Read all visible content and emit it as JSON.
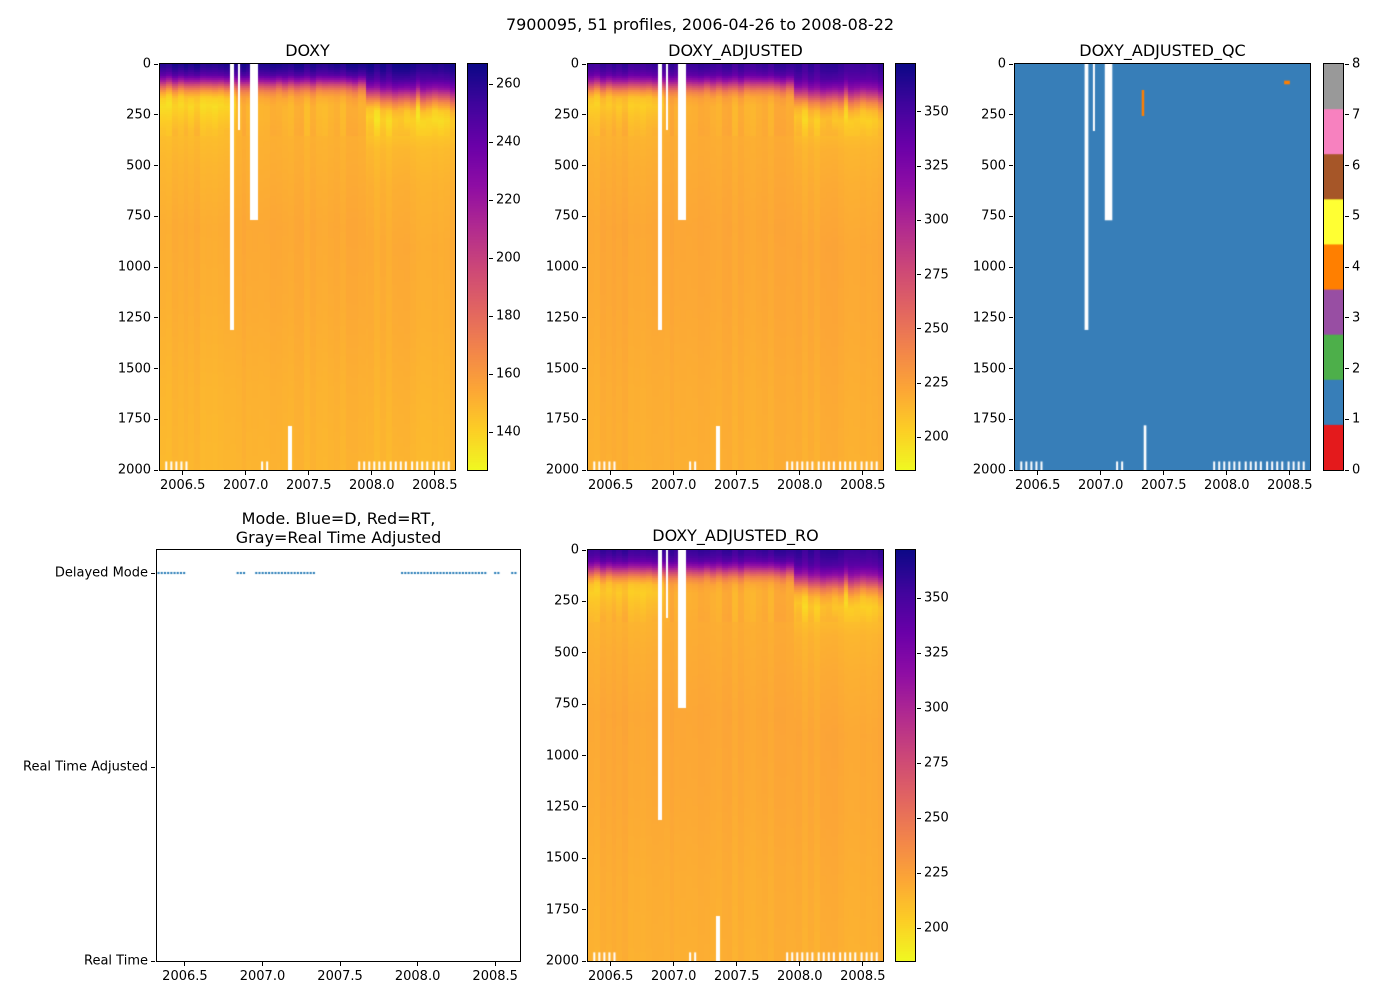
{
  "chart_data": {
    "suptitle": "7900095, 51 profiles, 2006-04-26 to 2008-08-22",
    "time_range": [
      2006.32,
      2008.66
    ],
    "depth_range": [
      0,
      2000
    ],
    "x_tick_values": [
      2006.5,
      2007.0,
      2007.5,
      2008.0,
      2008.5
    ],
    "x_tick_labels": [
      "2006.5",
      "2007.0",
      "2007.5",
      "2008.0",
      "2008.5"
    ],
    "y_tick_values": [
      0,
      250,
      500,
      750,
      1000,
      1250,
      1500,
      1750,
      2000
    ],
    "colormap_plasma": [
      "#0d0887",
      "#41049d",
      "#6a00a8",
      "#8f0da4",
      "#b12a90",
      "#cc4778",
      "#e16462",
      "#f2844b",
      "#fca636",
      "#fcce25",
      "#f0f921"
    ],
    "gaps": [
      {
        "t0": 2006.872,
        "t1": 2006.902,
        "d0": 0,
        "d1": 1310
      },
      {
        "t0": 2006.938,
        "t1": 2006.952,
        "d0": 0,
        "d1": 330
      },
      {
        "t0": 2007.032,
        "t1": 2007.092,
        "d0": 0,
        "d1": 770
      },
      {
        "t0": 2007.341,
        "t1": 2007.362,
        "d0": 1780,
        "d1": 2000
      }
    ],
    "bottom_notch_times": [
      2006.37,
      2006.41,
      2006.45,
      2006.49,
      2006.53,
      2007.13,
      2007.17,
      2007.9,
      2007.94,
      2007.98,
      2008.02,
      2008.06,
      2008.1,
      2008.15,
      2008.19,
      2008.23,
      2008.27,
      2008.32,
      2008.36,
      2008.4,
      2008.44,
      2008.49,
      2008.53,
      2008.57,
      2008.61
    ],
    "streak_patch": {
      "t0": 2007.95,
      "t1": 2008.66,
      "center": 185,
      "sigma": 90,
      "amp": 16
    },
    "charts": [
      {
        "id": "doxy",
        "type": "heatmap",
        "title": "DOXY",
        "colorbar": {
          "vmin": 127,
          "vmax": 267,
          "ticks": [
            140,
            160,
            180,
            200,
            220,
            240,
            260
          ]
        },
        "profiles": [
          {
            "t_end": 2006.92,
            "depths": [
              0,
              25,
              55,
              85,
              110,
              135,
              165,
              205,
              255,
              330,
              500,
              800,
              1200,
              1600,
              2000
            ],
            "values": [
              263,
              257,
              244,
              215,
              185,
              160,
              143,
              138,
              142,
              147,
              150,
              153,
              152,
              150,
              149
            ]
          },
          {
            "t_end": 2007.95,
            "depths": [
              0,
              25,
              55,
              85,
              110,
              135,
              165,
              205,
              255,
              330,
              500,
              800,
              1200,
              1600,
              2000
            ],
            "values": [
              263,
              258,
              246,
              218,
              190,
              168,
              155,
              150,
              150,
              151,
              152,
              154,
              153,
              151,
              150
            ]
          },
          {
            "t_end": 2008.66,
            "depths": [
              0,
              35,
              75,
              115,
              150,
              185,
              225,
              270,
              330,
              420,
              600,
              900,
              1300,
              1700,
              2000
            ],
            "values": [
              264,
              259,
              249,
              228,
              198,
              168,
              145,
              139,
              143,
              148,
              151,
              153,
              152,
              150,
              149
            ]
          }
        ]
      },
      {
        "id": "doxy_adjusted",
        "type": "heatmap",
        "title": "DOXY_ADJUSTED",
        "colorbar": {
          "vmin": 185,
          "vmax": 372,
          "ticks": [
            200,
            225,
            250,
            275,
            300,
            325,
            350
          ]
        },
        "profiles": [
          {
            "t_end": 2006.92,
            "depths": [
              0,
              25,
              55,
              85,
              110,
              135,
              165,
              205,
              255,
              330,
              500,
              800,
              1200,
              1600,
              2000
            ],
            "values": [
              357,
              351,
              337,
              304,
              268,
              235,
              212,
              206,
              211,
              216,
              219,
              222,
              221,
              219,
              218
            ]
          },
          {
            "t_end": 2007.95,
            "depths": [
              0,
              25,
              55,
              85,
              110,
              135,
              165,
              205,
              255,
              330,
              500,
              800,
              1200,
              1600,
              2000
            ],
            "values": [
              357,
              352,
              339,
              307,
              273,
              243,
              224,
              218,
              218,
              219,
              220,
              222,
              221,
              219,
              218
            ]
          },
          {
            "t_end": 2008.66,
            "depths": [
              0,
              35,
              75,
              115,
              150,
              185,
              225,
              270,
              330,
              420,
              600,
              900,
              1300,
              1700,
              2000
            ],
            "values": [
              358,
              353,
              343,
              318,
              283,
              243,
              216,
              206,
              211,
              216,
              219,
              222,
              221,
              219,
              218
            ]
          }
        ]
      },
      {
        "id": "doxy_adjusted_qc",
        "type": "heatmap_discrete",
        "title": "DOXY_ADJUSTED_QC",
        "base_value": 1,
        "colorbar": {
          "ticks": [
            0,
            1,
            2,
            3,
            4,
            5,
            6,
            7,
            8
          ],
          "colors": [
            "#e41a1c",
            "#377eb8",
            "#4daf4a",
            "#984ea3",
            "#ff7f00",
            "#ffff33",
            "#a65628",
            "#f781bf",
            "#999999"
          ]
        },
        "anomalies": [
          {
            "t0": 2007.325,
            "t1": 2007.345,
            "d0": 128,
            "d1": 256,
            "value": 4
          },
          {
            "t0": 2008.455,
            "t1": 2008.5,
            "d0": 82,
            "d1": 100,
            "value": 4
          }
        ]
      },
      {
        "id": "mode",
        "type": "event",
        "title_lines": [
          "Mode. Blue=D, Red=RT,",
          "Gray=Real Time Adjusted"
        ],
        "categories": [
          "Delayed Mode",
          "Real Time Adjusted",
          "Real Time"
        ],
        "marker_color": "#1f77b4",
        "delayed_times": [
          2006.33,
          2006.36,
          2006.39,
          2006.42,
          2006.45,
          2006.48,
          2006.51,
          2006.84,
          2006.87,
          2006.9,
          2006.96,
          2006.99,
          2007.04,
          2007.07,
          2007.1,
          2007.13,
          2007.16,
          2007.19,
          2007.22,
          2007.25,
          2007.28,
          2007.31,
          2007.34,
          2007.9,
          2007.93,
          2007.96,
          2007.99,
          2008.02,
          2008.05,
          2008.08,
          2008.11,
          2008.14,
          2008.17,
          2008.2,
          2008.23,
          2008.26,
          2008.29,
          2008.32,
          2008.35,
          2008.38,
          2008.41,
          2008.44,
          2008.5,
          2008.53,
          2008.61,
          2008.64
        ]
      },
      {
        "id": "doxy_adjusted_ro",
        "type": "heatmap",
        "title": "DOXY_ADJUSTED_RO",
        "colorbar": {
          "vmin": 185,
          "vmax": 372,
          "ticks": [
            200,
            225,
            250,
            275,
            300,
            325,
            350
          ]
        },
        "profiles": [
          {
            "t_end": 2006.92,
            "depths": [
              0,
              25,
              55,
              85,
              110,
              135,
              165,
              205,
              255,
              330,
              500,
              800,
              1200,
              1600,
              2000
            ],
            "values": [
              357,
              351,
              337,
              304,
              268,
              235,
              212,
              206,
              211,
              216,
              219,
              222,
              221,
              219,
              218
            ]
          },
          {
            "t_end": 2007.95,
            "depths": [
              0,
              25,
              55,
              85,
              110,
              135,
              165,
              205,
              255,
              330,
              500,
              800,
              1200,
              1600,
              2000
            ],
            "values": [
              357,
              352,
              339,
              307,
              273,
              243,
              224,
              218,
              218,
              219,
              220,
              222,
              221,
              219,
              218
            ]
          },
          {
            "t_end": 2008.66,
            "depths": [
              0,
              35,
              75,
              115,
              150,
              185,
              225,
              270,
              330,
              420,
              600,
              900,
              1300,
              1700,
              2000
            ],
            "values": [
              358,
              353,
              343,
              318,
              283,
              243,
              216,
              206,
              211,
              216,
              219,
              222,
              221,
              219,
              218
            ]
          }
        ]
      }
    ]
  }
}
